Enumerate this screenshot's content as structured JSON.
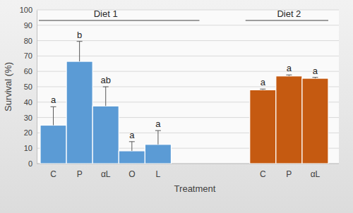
{
  "chart_data": {
    "type": "bar",
    "x_label": "Treatment",
    "y_label": "Survival (%)",
    "categories": [
      "C",
      "P",
      "αL",
      "O",
      "L",
      null,
      null,
      null,
      "C",
      "P",
      "αL"
    ],
    "series": [
      {
        "name": "Diet 1",
        "color": "#5b9bd5",
        "values": [
          25,
          66.5,
          37.5,
          8.3,
          12.5,
          null,
          null,
          null,
          null,
          null,
          null
        ],
        "errors": [
          12,
          13,
          12.5,
          6,
          9,
          null,
          null,
          null,
          null,
          null,
          null
        ],
        "annotations": [
          "a",
          "b",
          "ab",
          "a",
          "a",
          null,
          null,
          null,
          null,
          null,
          null
        ]
      },
      {
        "name": "Diet 2",
        "color": "#c55a11",
        "values": [
          null,
          null,
          null,
          null,
          null,
          null,
          null,
          null,
          48,
          57,
          55.5
        ],
        "errors": [
          null,
          null,
          null,
          null,
          null,
          null,
          null,
          null,
          0.5,
          0.7,
          0.6
        ],
        "annotations": [
          null,
          null,
          null,
          null,
          null,
          null,
          null,
          null,
          "a",
          "a",
          "a"
        ]
      }
    ],
    "ylim": [
      0,
      100
    ],
    "yticks": [
      0,
      10,
      20,
      30,
      40,
      50,
      60,
      70,
      80,
      90,
      100
    ],
    "grid": true
  }
}
